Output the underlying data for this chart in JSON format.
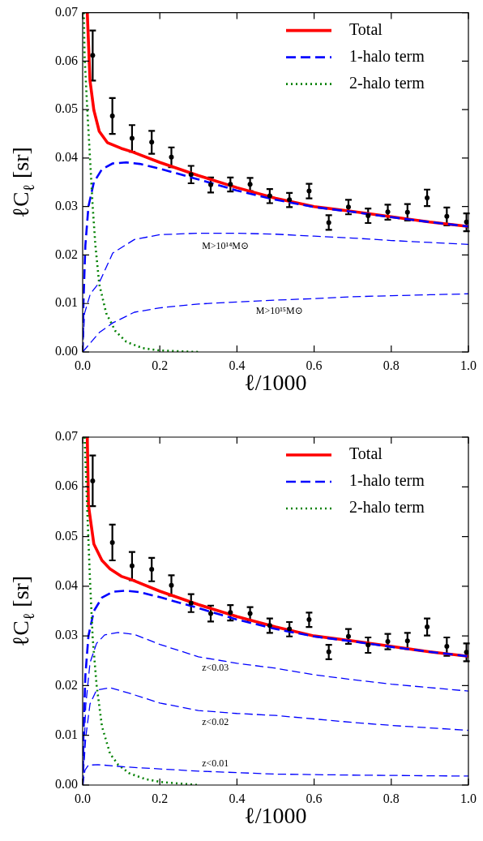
{
  "chart_data": [
    {
      "type": "line",
      "xlabel": "ℓ/1000",
      "ylabel": "ℓC$_{ℓ}$ [sr]",
      "xlim": [
        0,
        1
      ],
      "ylim": [
        0,
        0.07
      ],
      "xticks": [
        {
          "value": 0,
          "label": "0.0"
        },
        {
          "value": 0.2,
          "label": "0.2"
        },
        {
          "value": 0.4,
          "label": "0.4"
        },
        {
          "value": 0.6,
          "label": "0.6"
        },
        {
          "value": 0.8,
          "label": "0.8"
        },
        {
          "value": 1,
          "label": "1.0"
        }
      ],
      "yticks": [
        {
          "value": 0,
          "label": "0.00"
        },
        {
          "value": 0.01,
          "label": "0.01"
        },
        {
          "value": 0.02,
          "label": "0.02"
        },
        {
          "value": 0.03,
          "label": "0.03"
        },
        {
          "value": 0.04,
          "label": "0.04"
        },
        {
          "value": 0.05,
          "label": "0.05"
        },
        {
          "value": 0.06,
          "label": "0.06"
        },
        {
          "value": 0.07,
          "label": "0.07"
        }
      ],
      "legend": "top right",
      "annotations": [
        "M>10¹⁴M⊙",
        "M>10¹⁵M⊙"
      ],
      "series": [
        {
          "name": "Total",
          "color": "#ff0000",
          "line_style": "solid",
          "x": [
            0.012,
            0.019,
            0.029,
            0.043,
            0.064,
            0.1,
            0.128,
            0.2,
            0.3,
            0.4,
            0.5,
            0.6,
            0.7,
            0.8,
            0.9,
            1.0
          ],
          "values": [
            0.07,
            0.056,
            0.0499,
            0.0455,
            0.0432,
            0.042,
            0.0413,
            0.0391,
            0.0364,
            0.0339,
            0.0317,
            0.03,
            0.029,
            0.0279,
            0.0268,
            0.0259
          ]
        },
        {
          "name": "1-halo term",
          "color": "#0000ff",
          "line_style": "dashed",
          "x": [
            0,
            0.002,
            0.007,
            0.015,
            0.029,
            0.05,
            0.078,
            0.113,
            0.148,
            0.2,
            0.3,
            0.4,
            0.5,
            0.6,
            0.7,
            0.8,
            0.9,
            1.0
          ],
          "values": [
            0,
            0.01,
            0.022,
            0.03,
            0.035,
            0.0377,
            0.0389,
            0.0391,
            0.0388,
            0.0378,
            0.0356,
            0.0333,
            0.0314,
            0.0299,
            0.0289,
            0.0278,
            0.0268,
            0.0259
          ]
        },
        {
          "name": "2-halo term",
          "color": "#008000",
          "line_style": "dotted",
          "x": [
            0.003,
            0.005,
            0.012,
            0.019,
            0.026,
            0.033,
            0.043,
            0.061,
            0.085,
            0.113,
            0.155,
            0.2,
            0.3
          ],
          "values": [
            0.07,
            0.061,
            0.05,
            0.04,
            0.03,
            0.022,
            0.014,
            0.008,
            0.0043,
            0.0021,
            0.0008,
            0.0003,
            0
          ]
        },
        {
          "color": "#0000ff",
          "line_style": "dashed",
          "x": [
            0,
            0.005,
            0.02,
            0.043,
            0.078,
            0.134,
            0.2,
            0.3,
            0.4,
            0.5,
            0.6,
            0.7,
            0.8,
            0.9,
            1.0
          ],
          "values": [
            0,
            0.008,
            0.012,
            0.0143,
            0.0204,
            0.0232,
            0.0242,
            0.0245,
            0.0245,
            0.0243,
            0.0239,
            0.0235,
            0.023,
            0.0226,
            0.0222
          ]
        },
        {
          "color": "#0000ff",
          "line_style": "dashed",
          "x": [
            0,
            0.043,
            0.078,
            0.134,
            0.2,
            0.3,
            0.4,
            0.5,
            0.6,
            0.7,
            0.8,
            0.9,
            1.0
          ],
          "values": [
            0,
            0.004,
            0.006,
            0.0082,
            0.0091,
            0.0099,
            0.0103,
            0.0107,
            0.011,
            0.0114,
            0.0116,
            0.0118,
            0.012
          ]
        },
        {
          "type": "scatter",
          "marker": "circle",
          "color": "#000000",
          "x": [
            0.026,
            0.077,
            0.128,
            0.179,
            0.23,
            0.281,
            0.332,
            0.383,
            0.434,
            0.485,
            0.536,
            0.587,
            0.638,
            0.689,
            0.74,
            0.791,
            0.842,
            0.893,
            0.944,
            0.995
          ],
          "values": [
            0.0612,
            0.0487,
            0.0441,
            0.0433,
            0.0402,
            0.0366,
            0.0345,
            0.0346,
            0.0346,
            0.0322,
            0.0314,
            0.0332,
            0.0267,
            0.0299,
            0.0281,
            0.0289,
            0.0288,
            0.0318,
            0.028,
            0.0268
          ],
          "errors": [
            [
              0.056,
              0.0663
            ],
            [
              0.045,
              0.0524
            ],
            [
              0.0413,
              0.0468
            ],
            [
              0.0409,
              0.0456
            ],
            [
              0.0381,
              0.0422
            ],
            [
              0.0348,
              0.0384
            ],
            [
              0.0329,
              0.036
            ],
            [
              0.0331,
              0.036
            ],
            [
              0.0332,
              0.0359
            ],
            [
              0.0307,
              0.0336
            ],
            [
              0.0299,
              0.0328
            ],
            [
              0.0317,
              0.0347
            ],
            [
              0.0252,
              0.0282
            ],
            [
              0.0284,
              0.0314
            ],
            [
              0.0266,
              0.0296
            ],
            [
              0.0273,
              0.0304
            ],
            [
              0.0271,
              0.0305
            ],
            [
              0.0301,
              0.0335
            ],
            [
              0.0261,
              0.0298
            ],
            [
              0.0249,
              0.0286
            ]
          ]
        }
      ]
    },
    {
      "type": "line",
      "xlabel": "ℓ/1000",
      "ylabel": "ℓC$_{ℓ}$ [sr]",
      "xlim": [
        0,
        1
      ],
      "ylim": [
        0,
        0.07
      ],
      "xticks": [
        {
          "value": 0,
          "label": "0.0"
        },
        {
          "value": 0.2,
          "label": "0.2"
        },
        {
          "value": 0.4,
          "label": "0.4"
        },
        {
          "value": 0.6,
          "label": "0.6"
        },
        {
          "value": 0.8,
          "label": "0.8"
        },
        {
          "value": 1,
          "label": "1.0"
        }
      ],
      "yticks": [
        {
          "value": 0,
          "label": "0.00"
        },
        {
          "value": 0.01,
          "label": "0.01"
        },
        {
          "value": 0.02,
          "label": "0.02"
        },
        {
          "value": 0.03,
          "label": "0.03"
        },
        {
          "value": 0.04,
          "label": "0.04"
        },
        {
          "value": 0.05,
          "label": "0.05"
        },
        {
          "value": 0.06,
          "label": "0.06"
        },
        {
          "value": 0.07,
          "label": "0.07"
        }
      ],
      "legend": "top right",
      "annotations": [
        "z<0.03",
        "z<0.02",
        "z<0.01"
      ],
      "series": [
        {
          "name": "Total",
          "color": "#ff0000",
          "line_style": "solid",
          "x": [
            0.012,
            0.015,
            0.029,
            0.05,
            0.071,
            0.1,
            0.127,
            0.2,
            0.3,
            0.4,
            0.5,
            0.6,
            0.7,
            0.8,
            0.9,
            1.0
          ],
          "values": [
            0.07,
            0.0563,
            0.0485,
            0.0452,
            0.0435,
            0.042,
            0.0413,
            0.039,
            0.0363,
            0.0339,
            0.0318,
            0.03,
            0.029,
            0.0279,
            0.0268,
            0.0259
          ]
        },
        {
          "name": "1-halo term",
          "color": "#0000ff",
          "line_style": "dashed",
          "x": [
            0,
            0.002,
            0.007,
            0.015,
            0.029,
            0.05,
            0.078,
            0.113,
            0.148,
            0.2,
            0.3,
            0.4,
            0.5,
            0.6,
            0.7,
            0.8,
            0.9,
            1.0
          ],
          "values": [
            0,
            0.01,
            0.022,
            0.03,
            0.035,
            0.0377,
            0.0389,
            0.0391,
            0.0388,
            0.0378,
            0.0356,
            0.0333,
            0.0314,
            0.0299,
            0.0289,
            0.0278,
            0.0268,
            0.0259
          ]
        },
        {
          "name": "2-halo term",
          "color": "#008000",
          "line_style": "dotted",
          "x": [
            0.005,
            0.012,
            0.019,
            0.026,
            0.036,
            0.05,
            0.071,
            0.092,
            0.12,
            0.162,
            0.204,
            0.3
          ],
          "values": [
            0.07,
            0.0552,
            0.0413,
            0.0296,
            0.0202,
            0.0118,
            0.0063,
            0.0041,
            0.0024,
            0.0012,
            0.0006,
            0
          ]
        },
        {
          "color": "#0000ff",
          "line_style": "dashed",
          "x": [
            0,
            0.008,
            0.019,
            0.036,
            0.057,
            0.092,
            0.134,
            0.2,
            0.3,
            0.4,
            0.5,
            0.6,
            0.7,
            0.8,
            0.9,
            1.0
          ],
          "values": [
            0,
            0.016,
            0.0246,
            0.0285,
            0.0302,
            0.0307,
            0.0303,
            0.0283,
            0.0258,
            0.0245,
            0.0235,
            0.0222,
            0.0212,
            0.0203,
            0.0196,
            0.0189
          ]
        },
        {
          "color": "#0000ff",
          "line_style": "dashed",
          "x": [
            0,
            0.008,
            0.019,
            0.036,
            0.071,
            0.12,
            0.2,
            0.3,
            0.4,
            0.5,
            0.6,
            0.7,
            0.8,
            0.9,
            1.0
          ],
          "values": [
            0,
            0.0096,
            0.0163,
            0.0191,
            0.0196,
            0.0185,
            0.0165,
            0.015,
            0.0144,
            0.014,
            0.0133,
            0.0126,
            0.012,
            0.0115,
            0.011
          ]
        },
        {
          "color": "#0000ff",
          "line_style": "dashed",
          "x": [
            0,
            0.006,
            0.015,
            0.04,
            0.12,
            0.3,
            0.5,
            0.7,
            1.0
          ],
          "values": [
            0,
            0.003,
            0.004,
            0.0041,
            0.0036,
            0.0028,
            0.0022,
            0.002,
            0.0018
          ]
        },
        {
          "type": "scatter",
          "marker": "circle",
          "color": "#000000",
          "x": [
            0.026,
            0.077,
            0.128,
            0.179,
            0.23,
            0.281,
            0.332,
            0.383,
            0.434,
            0.485,
            0.536,
            0.587,
            0.638,
            0.689,
            0.74,
            0.791,
            0.842,
            0.893,
            0.944,
            0.995
          ],
          "values": [
            0.0612,
            0.0488,
            0.0441,
            0.0434,
            0.0402,
            0.0366,
            0.0345,
            0.0347,
            0.0345,
            0.0321,
            0.0314,
            0.0333,
            0.0268,
            0.0299,
            0.0282,
            0.0289,
            0.029,
            0.0318,
            0.0279,
            0.0267
          ],
          "errors": [
            [
              0.0561,
              0.0663
            ],
            [
              0.0452,
              0.0524
            ],
            [
              0.0412,
              0.0469
            ],
            [
              0.041,
              0.0457
            ],
            [
              0.0381,
              0.0422
            ],
            [
              0.0348,
              0.0384
            ],
            [
              0.0329,
              0.0361
            ],
            [
              0.0331,
              0.0362
            ],
            [
              0.0331,
              0.0358
            ],
            [
              0.0306,
              0.0335
            ],
            [
              0.0299,
              0.0328
            ],
            [
              0.0318,
              0.0347
            ],
            [
              0.0253,
              0.0282
            ],
            [
              0.0284,
              0.0314
            ],
            [
              0.0266,
              0.0297
            ],
            [
              0.0273,
              0.0304
            ],
            [
              0.0274,
              0.0306
            ],
            [
              0.0301,
              0.0335
            ],
            [
              0.026,
              0.0297
            ],
            [
              0.0249,
              0.0285
            ]
          ]
        }
      ]
    }
  ]
}
